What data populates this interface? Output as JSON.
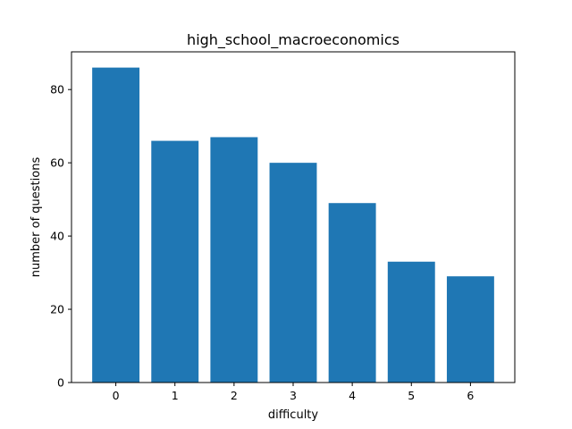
{
  "chart_data": {
    "type": "bar",
    "title": "high_school_macroeconomics",
    "xlabel": "difficulty",
    "ylabel": "number of questions",
    "categories": [
      "0",
      "1",
      "2",
      "3",
      "4",
      "5",
      "6"
    ],
    "values": [
      86,
      66,
      67,
      60,
      49,
      33,
      29
    ],
    "ylim": [
      0,
      90.3
    ],
    "yticks": [
      "0",
      "20",
      "40",
      "60",
      "80"
    ],
    "grid": false,
    "legend": "none",
    "bar_color": "#1f77b4"
  }
}
